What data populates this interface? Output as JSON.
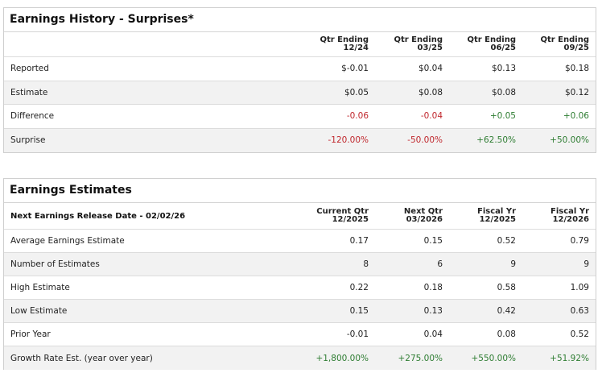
{
  "history": {
    "title": "Earnings History - Surprises*",
    "columns": [
      {
        "line1": "Qtr Ending",
        "line2": "12/24"
      },
      {
        "line1": "Qtr Ending",
        "line2": "03/25"
      },
      {
        "line1": "Qtr Ending",
        "line2": "06/25"
      },
      {
        "line1": "Qtr Ending",
        "line2": "09/25"
      }
    ],
    "rows": [
      {
        "label": "Reported",
        "values": [
          "$-0.01",
          "$0.04",
          "$0.13",
          "$0.18"
        ]
      },
      {
        "label": "Estimate",
        "values": [
          "$0.05",
          "$0.08",
          "$0.08",
          "$0.12"
        ]
      },
      {
        "label": "Difference",
        "values": [
          "-0.06",
          "-0.04",
          "+0.05",
          "+0.06"
        ]
      },
      {
        "label": "Surprise",
        "values": [
          "-120.00%",
          "-50.00%",
          "+62.50%",
          "+50.00%"
        ]
      }
    ]
  },
  "estimates": {
    "title": "Earnings Estimates",
    "header_label": "Next Earnings Release Date - 02/02/26",
    "columns": [
      {
        "line1": "Current Qtr",
        "line2": "12/2025"
      },
      {
        "line1": "Next Qtr",
        "line2": "03/2026"
      },
      {
        "line1": "Fiscal Yr",
        "line2": "12/2025"
      },
      {
        "line1": "Fiscal Yr",
        "line2": "12/2026"
      }
    ],
    "rows": [
      {
        "label": "Average Earnings Estimate",
        "values": [
          "0.17",
          "0.15",
          "0.52",
          "0.79"
        ]
      },
      {
        "label": "Number of Estimates",
        "values": [
          "8",
          "6",
          "9",
          "9"
        ]
      },
      {
        "label": "High Estimate",
        "values": [
          "0.22",
          "0.18",
          "0.58",
          "1.09"
        ]
      },
      {
        "label": "Low Estimate",
        "values": [
          "0.15",
          "0.13",
          "0.42",
          "0.63"
        ]
      },
      {
        "label": "Prior Year",
        "values": [
          "-0.01",
          "0.04",
          "0.08",
          "0.52"
        ]
      },
      {
        "label": "Growth Rate Est. (year over year)",
        "values": [
          "+1,800.00%",
          "+275.00%",
          "+550.00%",
          "+51.92%"
        ]
      }
    ]
  },
  "colors": {
    "negative": "#c0272d",
    "positive": "#2e7d32",
    "shaded_row": "#f2f2f2"
  }
}
